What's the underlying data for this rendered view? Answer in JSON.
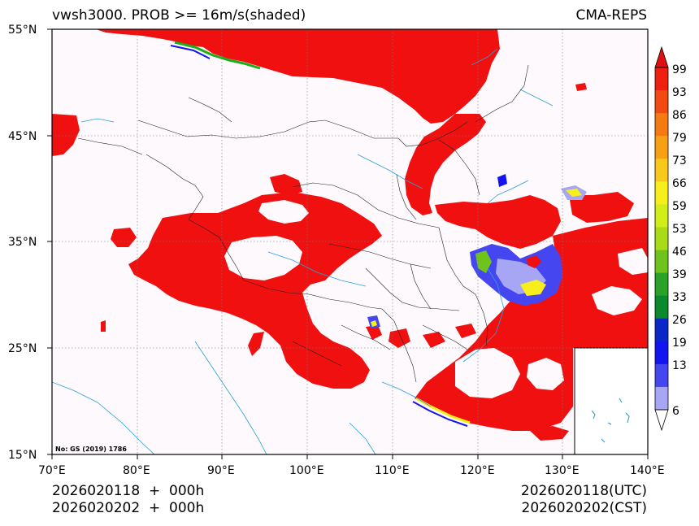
{
  "header": {
    "title_left": "vwsh3000. PROB >= 16m/s(shaded)",
    "title_right": "CMA-REPS"
  },
  "map": {
    "lon_ticks": [
      "70°E",
      "80°E",
      "90°E",
      "100°E",
      "110°E",
      "120°E",
      "130°E",
      "140°E"
    ],
    "lat_ticks": [
      "55°N",
      "45°N",
      "35°N",
      "25°N",
      "15°N"
    ],
    "map_credit": "No: GS (2019) 1786",
    "background_color": "#fdf9fd",
    "shade_color": "#f01010"
  },
  "colorbar": {
    "labels": [
      "99",
      "93",
      "86",
      "79",
      "73",
      "66",
      "59",
      "53",
      "46",
      "39",
      "33",
      "26",
      "19",
      "13",
      "6"
    ],
    "colors": [
      "#f02010",
      "#f24a10",
      "#f57a12",
      "#f7a014",
      "#f8c81a",
      "#f8ee1c",
      "#d2ee18",
      "#a8dc18",
      "#6ec41a",
      "#2aa228",
      "#0a8a2c",
      "#0a28c8",
      "#1414f0",
      "#4646f0",
      "#a6a6f4"
    ],
    "top_arrow_color": "#e11010",
    "bottom_arrow_color": "#ffffff"
  },
  "footer": {
    "init_utc": "2026020118  +  000h",
    "init_cst": "2026020202  +  000h",
    "valid_utc": "2026020118(UTC)",
    "valid_cst": "2026020202(CST)"
  }
}
